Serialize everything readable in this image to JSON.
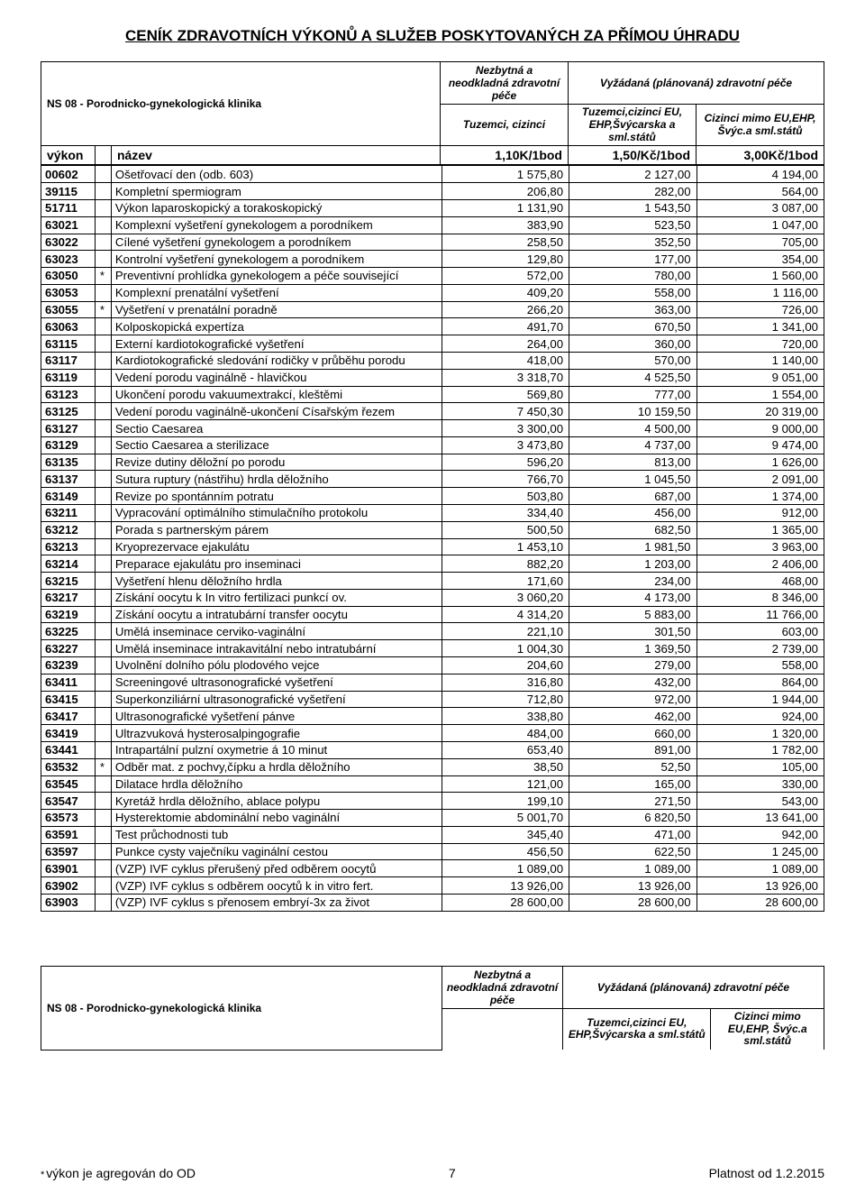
{
  "title": "CENÍK ZDRAVOTNÍCH VÝKONŮ A SLUŽEB POSKYTOVANÝCH ZA PŘÍMOU ÚHRADU",
  "clinic": "NS 08 - Porodnicko-gynekologická klinika",
  "header": {
    "col_top_left": "Nezbytná a neodkladná zdravotní péče",
    "col_top_right": "Vyžádaná (plánovaná) zdravotní péče",
    "col_sub_left": "Tuzemci, cizinci",
    "col_sub_mid": "Tuzemci,cizinci EU, EHP,Švýcarska a sml.států",
    "col_sub_right": "Cizinci mimo EU,EHP, Švýc.a sml.států",
    "row_vykon": "výkon",
    "row_nazev": "název",
    "rate1": "1,10K/1bod",
    "rate2": "1,50/Kč/1bod",
    "rate3": "3,00Kč/1bod"
  },
  "rows": [
    {
      "code": "00602",
      "star": "",
      "name": "Ošetřovací den (odb. 603)",
      "v1": "1 575,80",
      "v2": "2 127,00",
      "v3": "4 194,00"
    },
    {
      "code": "39115",
      "star": "",
      "name": "Kompletní spermiogram",
      "v1": "206,80",
      "v2": "282,00",
      "v3": "564,00"
    },
    {
      "code": "51711",
      "star": "",
      "name": "Výkon laparoskopický a torakoskopický",
      "v1": "1 131,90",
      "v2": "1 543,50",
      "v3": "3 087,00"
    },
    {
      "code": "63021",
      "star": "",
      "name": "Komplexní vyšetření gynekologem a porodníkem",
      "v1": "383,90",
      "v2": "523,50",
      "v3": "1 047,00"
    },
    {
      "code": "63022",
      "star": "",
      "name": "Cílené vyšetření gynekologem a porodníkem",
      "v1": "258,50",
      "v2": "352,50",
      "v3": "705,00"
    },
    {
      "code": "63023",
      "star": "",
      "name": "Kontrolní vyšetření gynekologem a porodníkem",
      "v1": "129,80",
      "v2": "177,00",
      "v3": "354,00"
    },
    {
      "code": "63050",
      "star": "*",
      "name": "Preventivní prohlídka gynekologem a péče související",
      "v1": "572,00",
      "v2": "780,00",
      "v3": "1 560,00"
    },
    {
      "code": "63053",
      "star": "",
      "name": "Komplexní prenatální vyšetření",
      "v1": "409,20",
      "v2": "558,00",
      "v3": "1 116,00"
    },
    {
      "code": "63055",
      "star": "*",
      "name": "Vyšetření v prenatální poradně",
      "v1": "266,20",
      "v2": "363,00",
      "v3": "726,00"
    },
    {
      "code": "63063",
      "star": "",
      "name": "Kolposkopická expertíza",
      "v1": "491,70",
      "v2": "670,50",
      "v3": "1 341,00"
    },
    {
      "code": "63115",
      "star": "",
      "name": "Externí kardiotokografické vyšetření",
      "v1": "264,00",
      "v2": "360,00",
      "v3": "720,00"
    },
    {
      "code": "63117",
      "star": "",
      "name": "Kardiotokografické sledování rodičky v průběhu porodu",
      "v1": "418,00",
      "v2": "570,00",
      "v3": "1 140,00"
    },
    {
      "code": "63119",
      "star": "",
      "name": "Vedení porodu vaginálně - hlavičkou",
      "v1": "3 318,70",
      "v2": "4 525,50",
      "v3": "9 051,00"
    },
    {
      "code": "63123",
      "star": "",
      "name": "Ukončení porodu vakuumextrakcí, kleštěmi",
      "v1": "569,80",
      "v2": "777,00",
      "v3": "1 554,00"
    },
    {
      "code": "63125",
      "star": "",
      "name": "Vedení porodu vaginálně-ukončení Císařským řezem",
      "v1": "7 450,30",
      "v2": "10 159,50",
      "v3": "20 319,00"
    },
    {
      "code": "63127",
      "star": "",
      "name": "Sectio Caesarea",
      "v1": "3 300,00",
      "v2": "4 500,00",
      "v3": "9 000,00"
    },
    {
      "code": "63129",
      "star": "",
      "name": "Sectio Caesarea a sterilizace",
      "v1": "3 473,80",
      "v2": "4 737,00",
      "v3": "9 474,00"
    },
    {
      "code": "63135",
      "star": "",
      "name": "Revize dutiny děložní po porodu",
      "v1": "596,20",
      "v2": "813,00",
      "v3": "1 626,00"
    },
    {
      "code": "63137",
      "star": "",
      "name": "Sutura ruptury (nástřihu) hrdla děložního",
      "v1": "766,70",
      "v2": "1 045,50",
      "v3": "2 091,00"
    },
    {
      "code": "63149",
      "star": "",
      "name": "Revize po spontánním potratu",
      "v1": "503,80",
      "v2": "687,00",
      "v3": "1 374,00"
    },
    {
      "code": "63211",
      "star": "",
      "name": "Vypracování optimálního stimulačního protokolu",
      "v1": "334,40",
      "v2": "456,00",
      "v3": "912,00"
    },
    {
      "code": "63212",
      "star": "",
      "name": "Porada s partnerským párem",
      "v1": "500,50",
      "v2": "682,50",
      "v3": "1 365,00"
    },
    {
      "code": "63213",
      "star": "",
      "name": "Kryoprezervace ejakulátu",
      "v1": "1 453,10",
      "v2": "1 981,50",
      "v3": "3 963,00"
    },
    {
      "code": "63214",
      "star": "",
      "name": "Preparace ejakulátu pro inseminaci",
      "v1": "882,20",
      "v2": "1 203,00",
      "v3": "2 406,00"
    },
    {
      "code": "63215",
      "star": "",
      "name": "Vyšetření hlenu děložního hrdla",
      "v1": "171,60",
      "v2": "234,00",
      "v3": "468,00"
    },
    {
      "code": "63217",
      "star": "",
      "name": "Získání oocytu k In vitro fertilizaci punkcí ov.",
      "v1": "3 060,20",
      "v2": "4 173,00",
      "v3": "8 346,00"
    },
    {
      "code": "63219",
      "star": "",
      "name": "Získání oocytu a intratubární transfer oocytu",
      "v1": "4 314,20",
      "v2": "5 883,00",
      "v3": "11 766,00"
    },
    {
      "code": "63225",
      "star": "",
      "name": "Umělá inseminace cerviko-vaginální",
      "v1": "221,10",
      "v2": "301,50",
      "v3": "603,00"
    },
    {
      "code": "63227",
      "star": "",
      "name": "Umělá inseminace intrakavitální nebo intratubární",
      "v1": "1 004,30",
      "v2": "1 369,50",
      "v3": "2 739,00"
    },
    {
      "code": "63239",
      "star": "",
      "name": "Uvolnění dolního pólu plodového vejce",
      "v1": "204,60",
      "v2": "279,00",
      "v3": "558,00"
    },
    {
      "code": "63411",
      "star": "",
      "name": "Screeningové ultrasonografické vyšetření",
      "v1": "316,80",
      "v2": "432,00",
      "v3": "864,00"
    },
    {
      "code": "63415",
      "star": "",
      "name": "Superkonziliární ultrasonografické vyšetření",
      "v1": "712,80",
      "v2": "972,00",
      "v3": "1 944,00"
    },
    {
      "code": "63417",
      "star": "",
      "name": "Ultrasonografické vyšetření pánve",
      "v1": "338,80",
      "v2": "462,00",
      "v3": "924,00"
    },
    {
      "code": "63419",
      "star": "",
      "name": "Ultrazvuková hysterosalpingografie",
      "v1": "484,00",
      "v2": "660,00",
      "v3": "1 320,00"
    },
    {
      "code": "63441",
      "star": "",
      "name": "Intrapartální pulzní oxymetrie á 10 minut",
      "v1": "653,40",
      "v2": "891,00",
      "v3": "1 782,00"
    },
    {
      "code": "63532",
      "star": "*",
      "name": "Odběr mat. z pochvy,čípku a hrdla děložního",
      "v1": "38,50",
      "v2": "52,50",
      "v3": "105,00"
    },
    {
      "code": "63545",
      "star": "",
      "name": "Dilatace hrdla děložního",
      "v1": "121,00",
      "v2": "165,00",
      "v3": "330,00"
    },
    {
      "code": "63547",
      "star": "",
      "name": "Kyretáž hrdla děložního, ablace polypu",
      "v1": "199,10",
      "v2": "271,50",
      "v3": "543,00"
    },
    {
      "code": "63573",
      "star": "",
      "name": "Hysterektomie abdominální nebo vaginální",
      "v1": "5 001,70",
      "v2": "6 820,50",
      "v3": "13 641,00"
    },
    {
      "code": "63591",
      "star": "",
      "name": "Test průchodnosti tub",
      "v1": "345,40",
      "v2": "471,00",
      "v3": "942,00"
    },
    {
      "code": "63597",
      "star": "",
      "name": "Punkce cysty vaječníku vaginální cestou",
      "v1": "456,50",
      "v2": "622,50",
      "v3": "1 245,00"
    },
    {
      "code": "63901",
      "star": "",
      "name": "(VZP) IVF cyklus přerušený před odběrem oocytů",
      "v1": "1 089,00",
      "v2": "1 089,00",
      "v3": "1 089,00"
    },
    {
      "code": "63902",
      "star": "",
      "name": "(VZP) IVF cyklus s odběrem oocytů k in vitro fert.",
      "v1": "13 926,00",
      "v2": "13 926,00",
      "v3": "13 926,00"
    },
    {
      "code": "63903",
      "star": "",
      "name": "(VZP) IVF cyklus s přenosem embryí-3x za život",
      "v1": "28 600,00",
      "v2": "28 600,00",
      "v3": "28 600,00"
    }
  ],
  "footer": {
    "left_star": "*",
    "left_text": "výkon je agregován do OD",
    "page_num": "7",
    "right_text": "Platnost od 1.2.2015"
  }
}
